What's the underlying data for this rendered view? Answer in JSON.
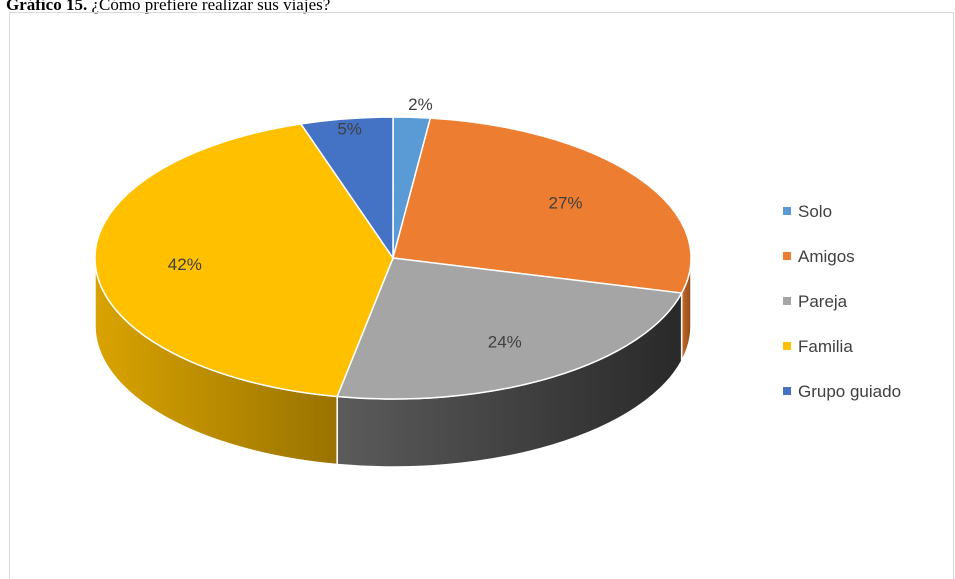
{
  "caption": {
    "prefix": "Gráfico 15.",
    "text": " ¿Cómo prefiere realizar sus viajes?"
  },
  "chart_data": {
    "type": "pie",
    "title": "",
    "categories": [
      "Solo",
      "Amigos",
      "Pareja",
      "Familia",
      "Grupo guiado"
    ],
    "values": [
      2,
      27,
      24,
      42,
      5
    ],
    "labels": [
      "2%",
      "27%",
      "24%",
      "42%",
      "5%"
    ],
    "colors": [
      "#5b9bd5",
      "#ed7d31",
      "#a5a5a5",
      "#ffc000",
      "#4472c4"
    ],
    "legend_position": "right",
    "style": "3d"
  }
}
